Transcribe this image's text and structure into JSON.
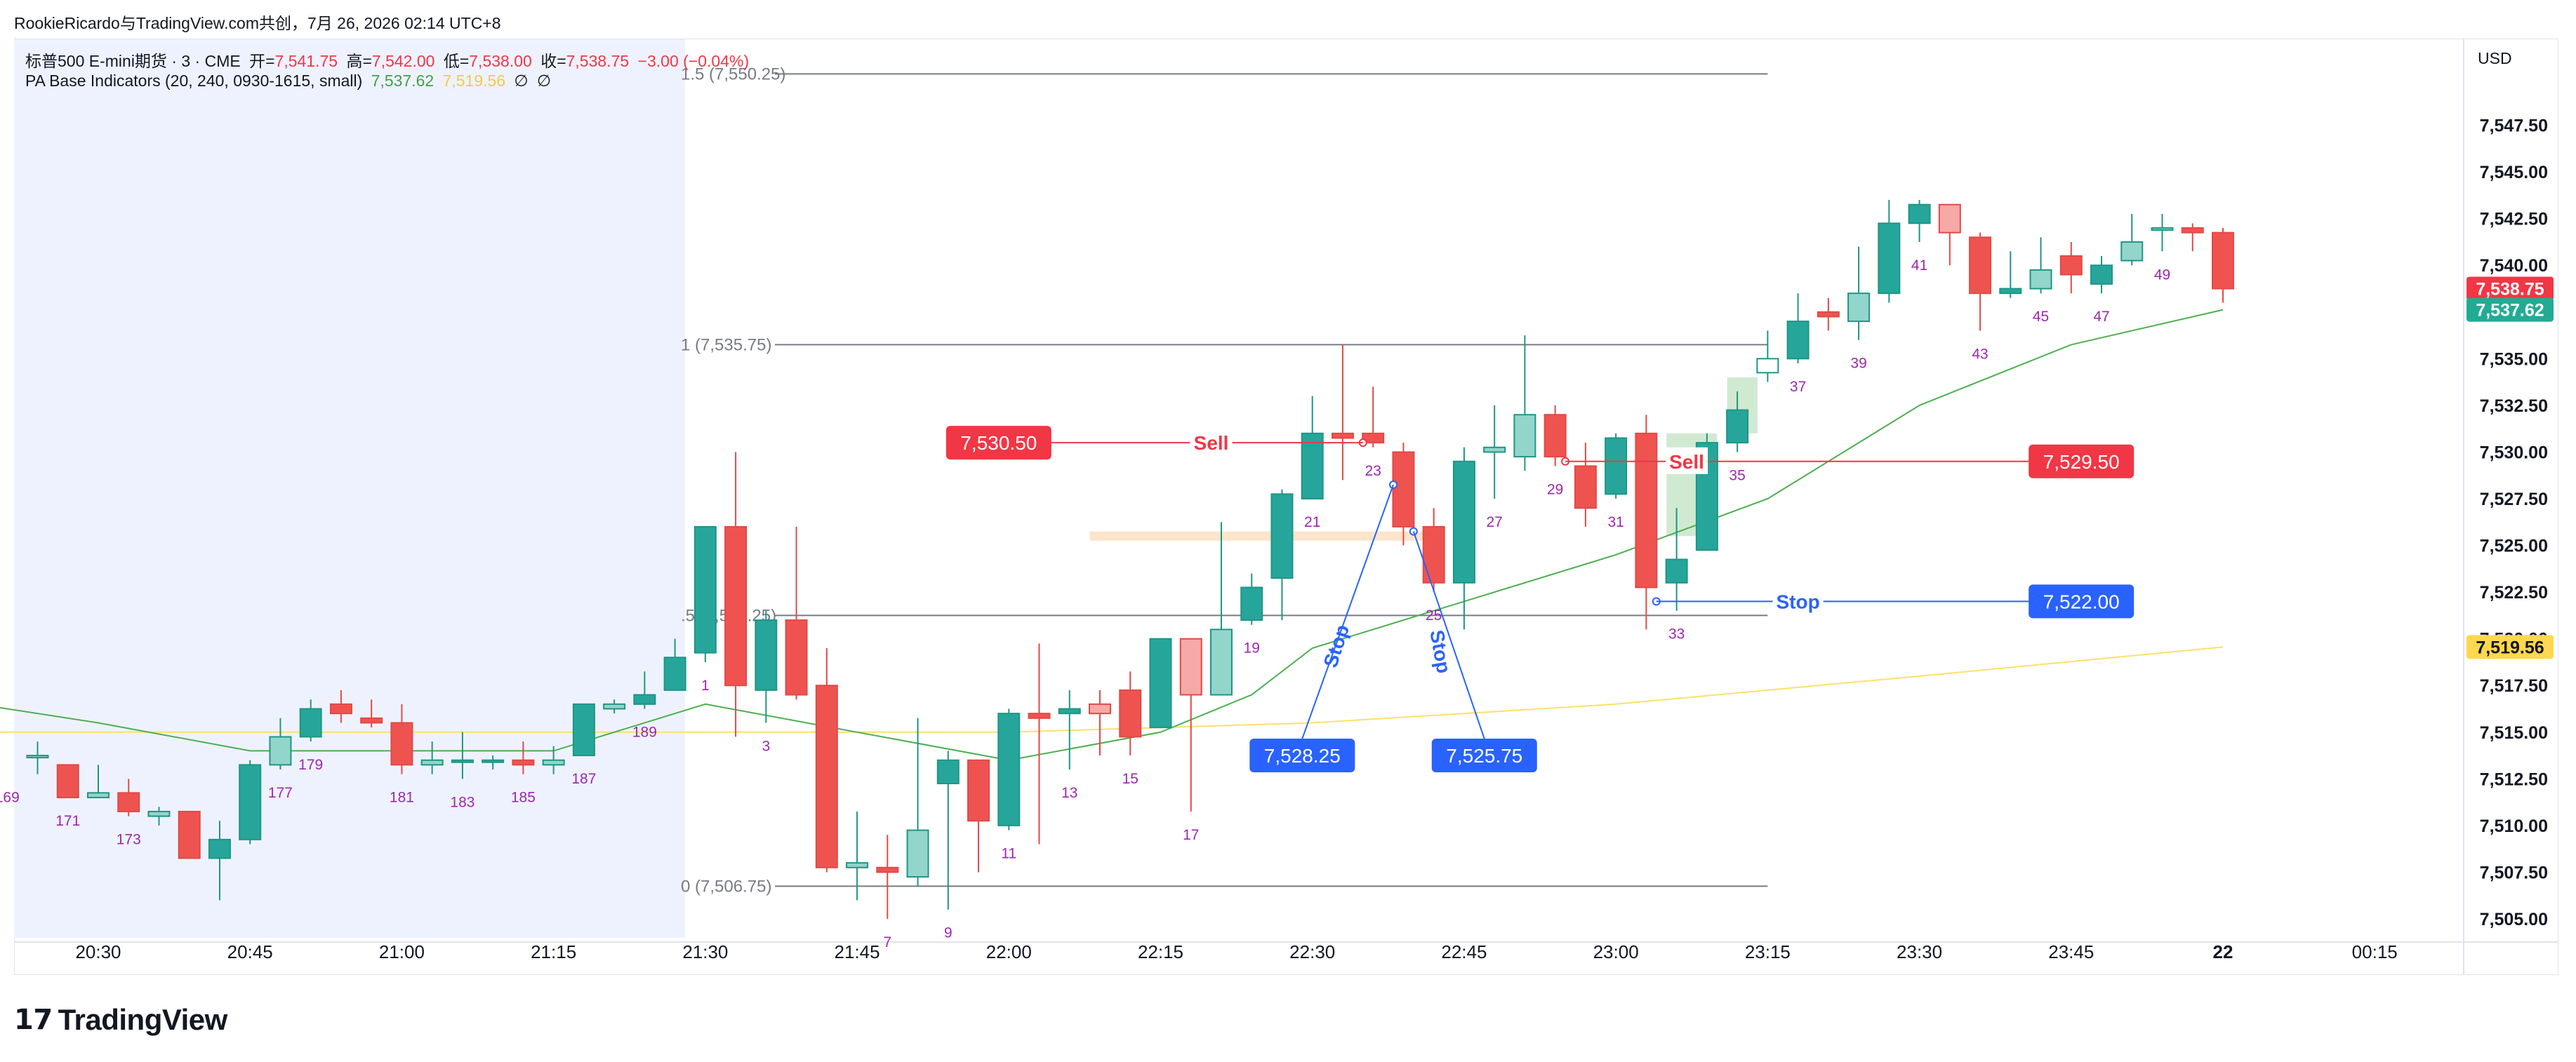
{
  "header": {
    "title": "RookieRicardo与TradingView.com共创，7月 26, 2026 02:14 UTC+8"
  },
  "legend": {
    "symbol": "标普500 E-mini期货 · 3 · CME",
    "open_label": "开=",
    "open": "7,541.75",
    "high_label": "高=",
    "high": "7,542.00",
    "low_label": "低=",
    "low": "7,538.00",
    "close_label": "收=",
    "close": "7,538.75",
    "change": "−3.00 (−0.04%)",
    "indicator_name": "PA Base Indicators (20, 240, 0930-1615, small)",
    "ema_fast": "7,537.62",
    "ema_slow": "7,519.56",
    "icons": [
      "∅",
      "∅"
    ]
  },
  "axis": {
    "currency": "USD"
  },
  "brand": {
    "logo_text": "TradingView",
    "logo_icon": "tradingview-logo-icon"
  },
  "colors": {
    "up": "#26a69a",
    "down": "#ef5350",
    "ema_fast": "#4caf50",
    "ema_slow": "#ffe066",
    "session_shade": "#eef2ff",
    "label_blue": "#2962ff",
    "label_red": "#f23645"
  },
  "chart_data": {
    "type": "candlestick",
    "bar_interval_minutes": 3,
    "y_axis": {
      "min": 7505.0,
      "max": 7550.0,
      "ticks": [
        "7,505.00",
        "7,507.50",
        "7,510.00",
        "7,512.50",
        "7,515.00",
        "7,517.50",
        "7,520.00",
        "7,522.50",
        "7,525.00",
        "7,527.50",
        "7,530.00",
        "7,532.50",
        "7,535.00",
        "7,537.50",
        "7,540.00",
        "7,542.50",
        "7,545.00",
        "7,547.50"
      ]
    },
    "x_ticks": [
      {
        "t": "20:30",
        "label": "20:30"
      },
      {
        "t": "20:45",
        "label": "20:45"
      },
      {
        "t": "21:00",
        "label": "21:00"
      },
      {
        "t": "21:15",
        "label": "21:15"
      },
      {
        "t": "21:30",
        "label": "21:30"
      },
      {
        "t": "21:45",
        "label": "21:45"
      },
      {
        "t": "22:00",
        "label": "22:00"
      },
      {
        "t": "22:15",
        "label": "22:15"
      },
      {
        "t": "22:30",
        "label": "22:30"
      },
      {
        "t": "22:45",
        "label": "22:45"
      },
      {
        "t": "23:00",
        "label": "23:00"
      },
      {
        "t": "23:15",
        "label": "23:15"
      },
      {
        "t": "23:30",
        "label": "23:30"
      },
      {
        "t": "23:45",
        "label": "23:45"
      },
      {
        "t": "24:00",
        "label": "22"
      },
      {
        "t": "24:15",
        "label": "00:15"
      }
    ],
    "candles": [
      {
        "t": "20:21",
        "o": 7513.75,
        "h": 7514.0,
        "l": 7512.75,
        "c": 7513.75,
        "light": true
      },
      {
        "t": "20:24",
        "o": 7513.75,
        "h": 7514.5,
        "l": 7512.75,
        "c": 7513.75,
        "light": true
      },
      {
        "t": "20:27",
        "o": 7513.25,
        "h": 7513.25,
        "l": 7511.5,
        "c": 7511.5
      },
      {
        "t": "20:30",
        "o": 7511.5,
        "h": 7513.25,
        "l": 7511.5,
        "c": 7511.75,
        "light": true
      },
      {
        "t": "20:33",
        "o": 7511.75,
        "h": 7512.5,
        "l": 7510.5,
        "c": 7510.75
      },
      {
        "t": "20:36",
        "o": 7510.5,
        "h": 7511.0,
        "l": 7510.0,
        "c": 7510.75,
        "light": true
      },
      {
        "t": "20:39",
        "o": 7510.75,
        "h": 7510.75,
        "l": 7508.25,
        "c": 7508.25
      },
      {
        "t": "20:42",
        "o": 7508.25,
        "h": 7510.25,
        "l": 7506.0,
        "c": 7509.25
      },
      {
        "t": "20:45",
        "o": 7509.25,
        "h": 7513.5,
        "l": 7509.0,
        "c": 7513.25
      },
      {
        "t": "20:48",
        "o": 7513.25,
        "h": 7515.75,
        "l": 7513.0,
        "c": 7514.75,
        "light": true
      },
      {
        "t": "20:51",
        "o": 7514.75,
        "h": 7516.75,
        "l": 7514.5,
        "c": 7516.25
      },
      {
        "t": "20:54",
        "o": 7516.5,
        "h": 7517.25,
        "l": 7515.5,
        "c": 7516.0
      },
      {
        "t": "20:57",
        "o": 7515.75,
        "h": 7516.75,
        "l": 7515.25,
        "c": 7515.5
      },
      {
        "t": "21:00",
        "o": 7515.5,
        "h": 7516.5,
        "l": 7512.75,
        "c": 7513.25
      },
      {
        "t": "21:03",
        "o": 7513.25,
        "h": 7514.5,
        "l": 7512.75,
        "c": 7513.5,
        "light": true
      },
      {
        "t": "21:06",
        "o": 7513.5,
        "h": 7515.0,
        "l": 7512.5,
        "c": 7513.5
      },
      {
        "t": "21:09",
        "o": 7513.5,
        "h": 7513.75,
        "l": 7513.0,
        "c": 7513.5
      },
      {
        "t": "21:12",
        "o": 7513.5,
        "h": 7514.5,
        "l": 7512.75,
        "c": 7513.25
      },
      {
        "t": "21:15",
        "o": 7513.25,
        "h": 7514.25,
        "l": 7512.75,
        "c": 7513.5,
        "light": true
      },
      {
        "t": "21:18",
        "o": 7513.75,
        "h": 7516.5,
        "l": 7513.75,
        "c": 7516.5
      },
      {
        "t": "21:21",
        "o": 7516.25,
        "h": 7516.75,
        "l": 7516.0,
        "c": 7516.5,
        "light": true
      },
      {
        "t": "21:24",
        "o": 7516.5,
        "h": 7518.25,
        "l": 7516.25,
        "c": 7517.0
      },
      {
        "t": "21:27",
        "o": 7517.25,
        "h": 7520.0,
        "l": 7517.25,
        "c": 7519.0
      },
      {
        "t": "21:30",
        "o": 7519.25,
        "h": 7526.0,
        "l": 7518.75,
        "c": 7526.0
      },
      {
        "t": "21:33",
        "o": 7526.0,
        "h": 7530.0,
        "l": 7514.75,
        "c": 7517.5
      },
      {
        "t": "21:36",
        "o": 7517.25,
        "h": 7521.5,
        "l": 7515.5,
        "c": 7521.0
      },
      {
        "t": "21:39",
        "o": 7521.0,
        "h": 7526.0,
        "l": 7516.75,
        "c": 7517.0
      },
      {
        "t": "21:42",
        "o": 7517.5,
        "h": 7519.5,
        "l": 7507.5,
        "c": 7507.75
      },
      {
        "t": "21:45",
        "o": 7507.75,
        "h": 7510.75,
        "l": 7506.0,
        "c": 7508.0,
        "light": true
      },
      {
        "t": "21:48",
        "o": 7507.75,
        "h": 7509.5,
        "l": 7505.0,
        "c": 7507.5
      },
      {
        "t": "21:51",
        "o": 7507.25,
        "h": 7515.75,
        "l": 7506.75,
        "c": 7509.75,
        "light": true
      },
      {
        "t": "21:54",
        "o": 7512.25,
        "h": 7514.0,
        "l": 7505.5,
        "c": 7513.5
      },
      {
        "t": "21:57",
        "o": 7513.5,
        "h": 7513.5,
        "l": 7507.5,
        "c": 7510.25
      },
      {
        "t": "22:00",
        "o": 7510.0,
        "h": 7516.25,
        "l": 7509.75,
        "c": 7516.0
      },
      {
        "t": "22:03",
        "o": 7516.0,
        "h": 7519.75,
        "l": 7509.0,
        "c": 7515.75
      },
      {
        "t": "22:06",
        "o": 7516.0,
        "h": 7517.25,
        "l": 7513.0,
        "c": 7516.25
      },
      {
        "t": "22:09",
        "o": 7516.5,
        "h": 7517.25,
        "l": 7513.75,
        "c": 7516.0,
        "light": true
      },
      {
        "t": "22:12",
        "o": 7517.25,
        "h": 7518.25,
        "l": 7513.75,
        "c": 7514.75
      },
      {
        "t": "22:15",
        "o": 7515.25,
        "h": 7520.0,
        "l": 7515.25,
        "c": 7520.0
      },
      {
        "t": "22:18",
        "o": 7520.0,
        "h": 7520.0,
        "l": 7510.75,
        "c": 7517.0,
        "light": true
      },
      {
        "t": "22:21",
        "o": 7517.0,
        "h": 7526.25,
        "l": 7517.0,
        "c": 7520.5,
        "light": true
      },
      {
        "t": "22:24",
        "o": 7521.0,
        "h": 7523.5,
        "l": 7520.75,
        "c": 7522.75
      },
      {
        "t": "22:27",
        "o": 7523.25,
        "h": 7528.0,
        "l": 7521.0,
        "c": 7527.75
      },
      {
        "t": "22:30",
        "o": 7527.5,
        "h": 7533.0,
        "l": 7527.5,
        "c": 7531.0
      },
      {
        "t": "22:33",
        "o": 7531.0,
        "h": 7535.75,
        "l": 7528.5,
        "c": 7530.75
      },
      {
        "t": "22:36",
        "o": 7531.0,
        "h": 7533.5,
        "l": 7530.25,
        "c": 7530.5
      },
      {
        "t": "22:39",
        "o": 7530.0,
        "h": 7530.5,
        "l": 7525.0,
        "c": 7526.0
      },
      {
        "t": "22:42",
        "o": 7526.0,
        "h": 7527.0,
        "l": 7522.5,
        "c": 7523.0
      },
      {
        "t": "22:45",
        "o": 7523.0,
        "h": 7530.25,
        "l": 7520.5,
        "c": 7529.5
      },
      {
        "t": "22:48",
        "o": 7530.0,
        "h": 7532.5,
        "l": 7527.5,
        "c": 7530.25,
        "light": true
      },
      {
        "t": "22:51",
        "o": 7529.75,
        "h": 7536.25,
        "l": 7529.0,
        "c": 7532.0,
        "light": true
      },
      {
        "t": "22:54",
        "o": 7532.0,
        "h": 7532.5,
        "l": 7529.25,
        "c": 7529.75
      },
      {
        "t": "22:57",
        "o": 7529.25,
        "h": 7530.5,
        "l": 7526.0,
        "c": 7527.0
      },
      {
        "t": "23:00",
        "o": 7527.75,
        "h": 7531.0,
        "l": 7527.5,
        "c": 7530.75
      },
      {
        "t": "23:03",
        "o": 7531.0,
        "h": 7532.0,
        "l": 7520.5,
        "c": 7522.75
      },
      {
        "t": "23:06",
        "o": 7523.0,
        "h": 7527.0,
        "l": 7521.5,
        "c": 7524.25
      },
      {
        "t": "23:09",
        "o": 7524.75,
        "h": 7531.0,
        "l": 7524.75,
        "c": 7530.5
      },
      {
        "t": "23:12",
        "o": 7530.5,
        "h": 7533.25,
        "l": 7530.0,
        "c": 7532.25
      },
      {
        "t": "23:15",
        "o": 7534.25,
        "h": 7536.5,
        "l": 7533.75,
        "c": 7535.0,
        "hollow": true
      },
      {
        "t": "23:18",
        "o": 7535.0,
        "h": 7538.5,
        "l": 7534.75,
        "c": 7537.0
      },
      {
        "t": "23:21",
        "o": 7537.5,
        "h": 7538.25,
        "l": 7536.5,
        "c": 7537.25
      },
      {
        "t": "23:24",
        "o": 7537.0,
        "h": 7541.0,
        "l": 7536.0,
        "c": 7538.5,
        "light": true
      },
      {
        "t": "23:27",
        "o": 7538.5,
        "h": 7543.5,
        "l": 7538.0,
        "c": 7542.25
      },
      {
        "t": "23:30",
        "o": 7542.25,
        "h": 7543.5,
        "l": 7541.25,
        "c": 7543.25
      },
      {
        "t": "23:33",
        "o": 7543.25,
        "h": 7543.25,
        "l": 7540.0,
        "c": 7541.75,
        "light": true
      },
      {
        "t": "23:36",
        "o": 7541.5,
        "h": 7541.75,
        "l": 7536.5,
        "c": 7538.5
      },
      {
        "t": "23:39",
        "o": 7538.5,
        "h": 7540.75,
        "l": 7538.25,
        "c": 7538.75
      },
      {
        "t": "23:42",
        "o": 7538.75,
        "h": 7541.5,
        "l": 7538.5,
        "c": 7539.75,
        "light": true
      },
      {
        "t": "23:45",
        "o": 7540.5,
        "h": 7541.25,
        "l": 7538.5,
        "c": 7539.5
      },
      {
        "t": "23:48",
        "o": 7539.0,
        "h": 7540.5,
        "l": 7538.5,
        "c": 7540.0
      },
      {
        "t": "23:51",
        "o": 7540.25,
        "h": 7542.75,
        "l": 7540.0,
        "c": 7541.25,
        "light": true
      },
      {
        "t": "23:54",
        "o": 7542.0,
        "h": 7542.75,
        "l": 7540.75,
        "c": 7542.0,
        "light": true
      },
      {
        "t": "23:57",
        "o": 7542.0,
        "h": 7542.25,
        "l": 7540.75,
        "c": 7541.75
      },
      {
        "t": "24:00",
        "o": 7541.75,
        "h": 7542.0,
        "l": 7538.0,
        "c": 7538.75
      }
    ],
    "bar_numbers": [
      {
        "t": "20:21",
        "label": "169"
      },
      {
        "t": "20:27",
        "label": "171"
      },
      {
        "t": "20:33",
        "label": "173"
      },
      {
        "t": "20:48",
        "label": "177"
      },
      {
        "t": "20:51",
        "label": "179"
      },
      {
        "t": "21:00",
        "label": "181"
      },
      {
        "t": "21:06",
        "label": "183"
      },
      {
        "t": "21:12",
        "label": "185"
      },
      {
        "t": "21:18",
        "label": "187"
      },
      {
        "t": "21:24",
        "label": "189"
      },
      {
        "t": "21:30",
        "label": "1"
      },
      {
        "t": "21:36",
        "label": "3"
      },
      {
        "t": "21:48",
        "label": "7"
      },
      {
        "t": "21:54",
        "label": "9"
      },
      {
        "t": "22:00",
        "label": "11"
      },
      {
        "t": "22:06",
        "label": "13"
      },
      {
        "t": "22:12",
        "label": "15"
      },
      {
        "t": "22:18",
        "label": "17"
      },
      {
        "t": "22:24",
        "label": "19"
      },
      {
        "t": "22:30",
        "label": "21"
      },
      {
        "t": "22:36",
        "label": "23"
      },
      {
        "t": "22:42",
        "label": "25"
      },
      {
        "t": "22:48",
        "label": "27"
      },
      {
        "t": "22:54",
        "label": "29"
      },
      {
        "t": "23:00",
        "label": "31"
      },
      {
        "t": "23:06",
        "label": "33"
      },
      {
        "t": "23:12",
        "label": "35"
      },
      {
        "t": "23:18",
        "label": "37"
      },
      {
        "t": "23:24",
        "label": "39"
      },
      {
        "t": "23:30",
        "label": "41"
      },
      {
        "t": "23:36",
        "label": "43"
      },
      {
        "t": "23:42",
        "label": "45"
      },
      {
        "t": "23:48",
        "label": "47"
      },
      {
        "t": "23:54",
        "label": "49"
      }
    ],
    "ema_fast": [
      {
        "t": "20:18",
        "v": 7516.5
      },
      {
        "t": "20:30",
        "v": 7515.5
      },
      {
        "t": "20:45",
        "v": 7514.0
      },
      {
        "t": "21:00",
        "v": 7514.0
      },
      {
        "t": "21:15",
        "v": 7514.0
      },
      {
        "t": "21:30",
        "v": 7516.5
      },
      {
        "t": "21:45",
        "v": 7515.0
      },
      {
        "t": "22:00",
        "v": 7513.5
      },
      {
        "t": "22:15",
        "v": 7515.0
      },
      {
        "t": "22:24",
        "v": 7517.0
      },
      {
        "t": "22:30",
        "v": 7519.5
      },
      {
        "t": "22:45",
        "v": 7522.0
      },
      {
        "t": "23:00",
        "v": 7524.5
      },
      {
        "t": "23:15",
        "v": 7527.5
      },
      {
        "t": "23:30",
        "v": 7532.5
      },
      {
        "t": "23:45",
        "v": 7535.75
      },
      {
        "t": "24:00",
        "v": 7537.62
      }
    ],
    "ema_slow": [
      {
        "t": "20:18",
        "v": 7515.0
      },
      {
        "t": "21:00",
        "v": 7515.0
      },
      {
        "t": "21:30",
        "v": 7515.0
      },
      {
        "t": "22:00",
        "v": 7515.0
      },
      {
        "t": "22:30",
        "v": 7515.5
      },
      {
        "t": "23:00",
        "v": 7516.5
      },
      {
        "t": "23:30",
        "v": 7518.0
      },
      {
        "t": "24:00",
        "v": 7519.56
      }
    ],
    "session_shade": {
      "from": "20:18",
      "to": "21:28"
    },
    "fib_levels": [
      {
        "value": 7550.25,
        "label": "1.5 (7,550.25)"
      },
      {
        "value": 7535.75,
        "label": "1 (7,535.75)"
      },
      {
        "value": 7521.25,
        "label": ".5 (7,521.25)"
      },
      {
        "value": 7506.75,
        "label": "0 (7,506.75)"
      }
    ],
    "fib_range": {
      "from": "21:28",
      "to": "23:15"
    },
    "zones": [
      {
        "from": "22:08",
        "to": "22:42",
        "low": 7525.25,
        "high": 7525.75,
        "color": "#fde0c2"
      },
      {
        "from": "23:05",
        "to": "23:10",
        "low": 7525.5,
        "high": 7531.0,
        "color": "#c8e6c9"
      },
      {
        "from": "23:11",
        "to": "23:14",
        "low": 7531.0,
        "high": 7534.0,
        "color": "#c8e6c9"
      }
    ],
    "annotations": [
      {
        "type": "sell",
        "text": "Sell",
        "price_label": "7,530.50",
        "value": 7530.5,
        "anchor_t": "22:35",
        "box_t": "21:59",
        "text_t": "22:20"
      },
      {
        "type": "sell",
        "text": "Sell",
        "price_label": "7,529.50",
        "value": 7529.5,
        "anchor_t": "22:55",
        "box_t": "23:46",
        "text_t": "23:07"
      },
      {
        "type": "stop",
        "text": "Stop",
        "price_label": "7,528.25",
        "value": 7528.25,
        "anchor_t": "22:38",
        "box_t": "22:29",
        "box_value": 7513.75,
        "text_t": "22:33",
        "text_value": 7519.5
      },
      {
        "type": "stop",
        "text": "Stop",
        "price_label": "7,525.75",
        "value": 7525.75,
        "anchor_t": "22:40",
        "box_t": "22:47",
        "box_value": 7513.75,
        "text_t": "22:42",
        "text_value": 7519.25
      },
      {
        "type": "stop",
        "text": "Stop",
        "price_label": "7,522.00",
        "value": 7522.0,
        "anchor_t": "23:04",
        "box_t": "23:46",
        "text_t": "23:18"
      }
    ],
    "axis_badges": [
      {
        "value": 7538.75,
        "label": "7,538.75",
        "color": "#f23645"
      },
      {
        "value": 7537.62,
        "label": "7,537.62",
        "color": "#22ab94"
      },
      {
        "value": 7519.56,
        "label": "7,519.56",
        "color": "#ffd84d"
      }
    ]
  }
}
